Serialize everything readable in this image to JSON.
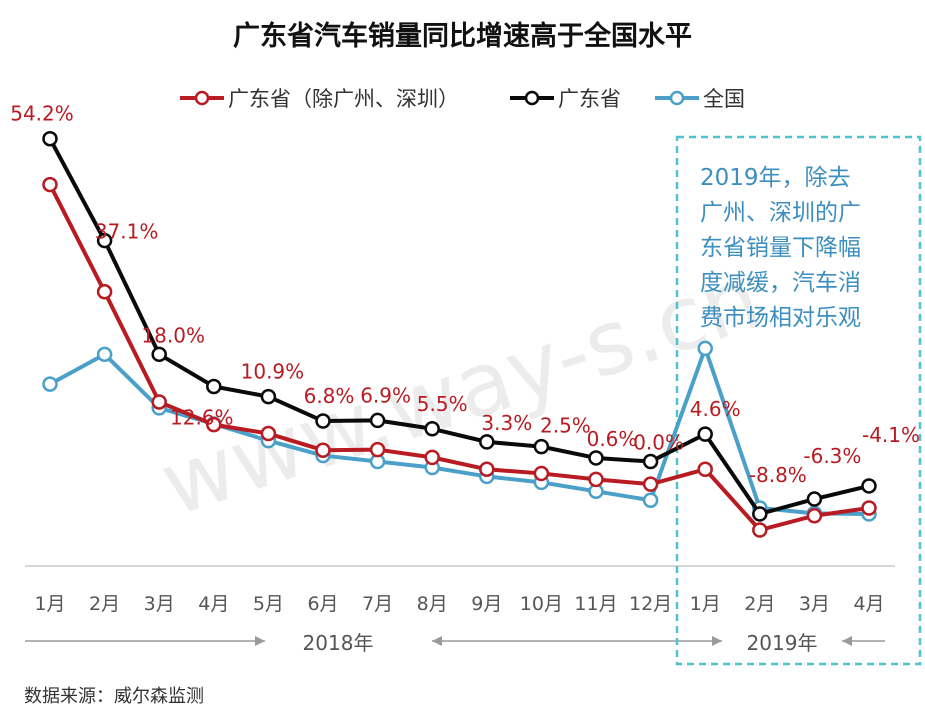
{
  "chart_data": {
    "type": "line",
    "title": "广东省汽车销量同比增速高于全国水平",
    "categories": [
      "1月",
      "2月",
      "3月",
      "4月",
      "5月",
      "6月",
      "7月",
      "8月",
      "9月",
      "10月",
      "11月",
      "12月",
      "1月",
      "2月",
      "3月",
      "4月"
    ],
    "year_labels": [
      "2018年",
      "2019年"
    ],
    "legend_position": "top",
    "grid": false,
    "ylim": [
      -20,
      60
    ],
    "series": [
      {
        "name": "广东省（除广州、深圳）",
        "color": "#b81c22",
        "marker": "hollow-circle",
        "values": [
          46.5,
          28.5,
          10.0,
          6.2,
          4.7,
          1.9,
          2.0,
          0.7,
          -1.3,
          -2.0,
          -3.0,
          -3.8,
          -1.3,
          -11.5,
          -9.1,
          -7.8
        ]
      },
      {
        "name": "广东省",
        "color": "#0a0a0a",
        "marker": "hollow-circle",
        "values": [
          54.2,
          37.1,
          18.0,
          12.6,
          10.9,
          6.8,
          6.9,
          5.5,
          3.3,
          2.5,
          0.6,
          0.0,
          4.6,
          -8.8,
          -6.3,
          -4.1
        ]
      },
      {
        "name": "全国",
        "color": "#4aa0c8",
        "marker": "hollow-circle",
        "values": [
          13.0,
          18.0,
          9.0,
          6.3,
          3.5,
          1.0,
          0.0,
          -1.0,
          -2.5,
          -3.5,
          -5.0,
          -6.5,
          19.0,
          -7.8,
          -8.7,
          -8.8
        ]
      }
    ],
    "data_labels": [
      "54.2%",
      "37.1%",
      "18.0%",
      "12.6%",
      "10.9%",
      "6.8%",
      "6.9%",
      "5.5%",
      "3.3%",
      "2.5%",
      "0.6%",
      "0.0%",
      "4.6%",
      "-8.8%",
      "-6.3%",
      "-4.1%"
    ],
    "annotation": {
      "lines": [
        "2019年，除去",
        "广州、深圳的广",
        "东省销量下降幅",
        "度减缓，汽车消",
        "费市场相对乐观"
      ],
      "color": "#3c8fbf"
    }
  },
  "source": "数据来源：威尔森监测",
  "watermark": "www.way-s.cn"
}
